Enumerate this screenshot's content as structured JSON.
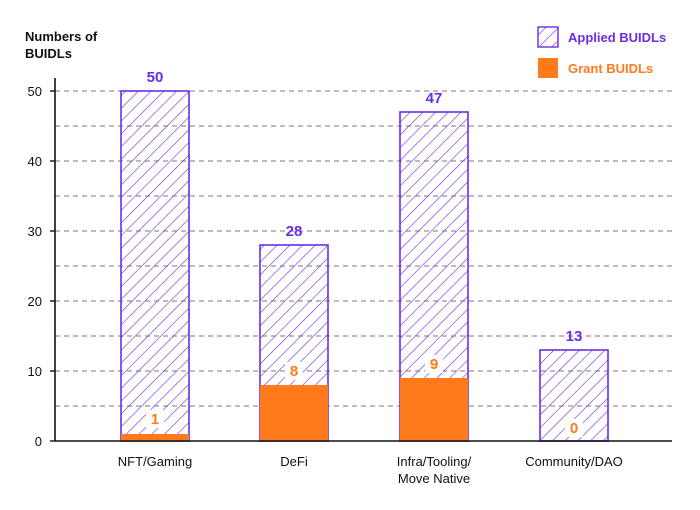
{
  "chart_data": {
    "type": "bar",
    "categories": [
      "NFT/Gaming",
      "DeFi",
      "Infra/Tooling/Move Native",
      "Community/DAO"
    ],
    "category_lines": [
      [
        "NFT/Gaming"
      ],
      [
        "DeFi"
      ],
      [
        "Infra/Tooling/",
        "Move Native"
      ],
      [
        "Community/DAO"
      ]
    ],
    "series": [
      {
        "name": "Applied BUIDLs",
        "values": [
          50,
          28,
          47,
          13
        ],
        "color": "#6a2ee8",
        "style": "hatched"
      },
      {
        "name": "Grant BUIDLs",
        "values": [
          1,
          8,
          9,
          0
        ],
        "color": "#ff7a1a",
        "style": "solid"
      }
    ],
    "title": "",
    "xlabel": "",
    "ylabel_lines": [
      "Numbers of",
      "BUIDLs"
    ],
    "ylim": [
      0,
      53
    ],
    "yticks": [
      0,
      10,
      20,
      30,
      40,
      50
    ],
    "grid": "dashed-horizontal",
    "legend": "top-right"
  }
}
